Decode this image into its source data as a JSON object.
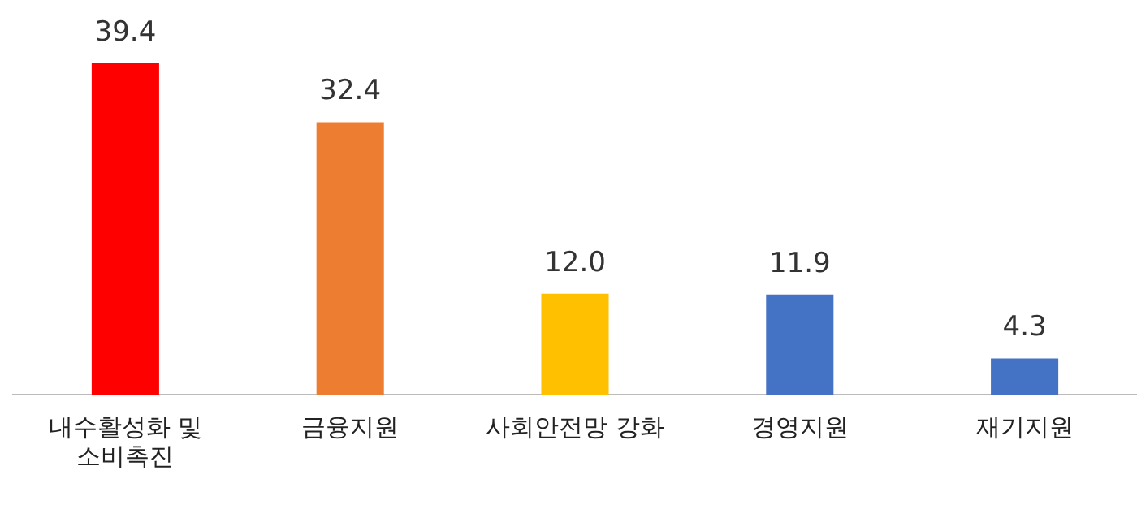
{
  "chart_data": {
    "type": "bar",
    "categories": [
      "내수활성화 및 소비촉진",
      "금융지원",
      "사회안전망 강화",
      "경영지원",
      "재기지원"
    ],
    "values": [
      39.4,
      32.4,
      12.0,
      11.9,
      4.3
    ],
    "colors": [
      "#ff0000",
      "#ed7d31",
      "#ffc000",
      "#4472c4",
      "#4472c4"
    ],
    "value_labels": [
      "39.4",
      "32.4",
      "12.0",
      "11.9",
      "4.3"
    ],
    "relative": false,
    "grid": false,
    "legend": false
  }
}
